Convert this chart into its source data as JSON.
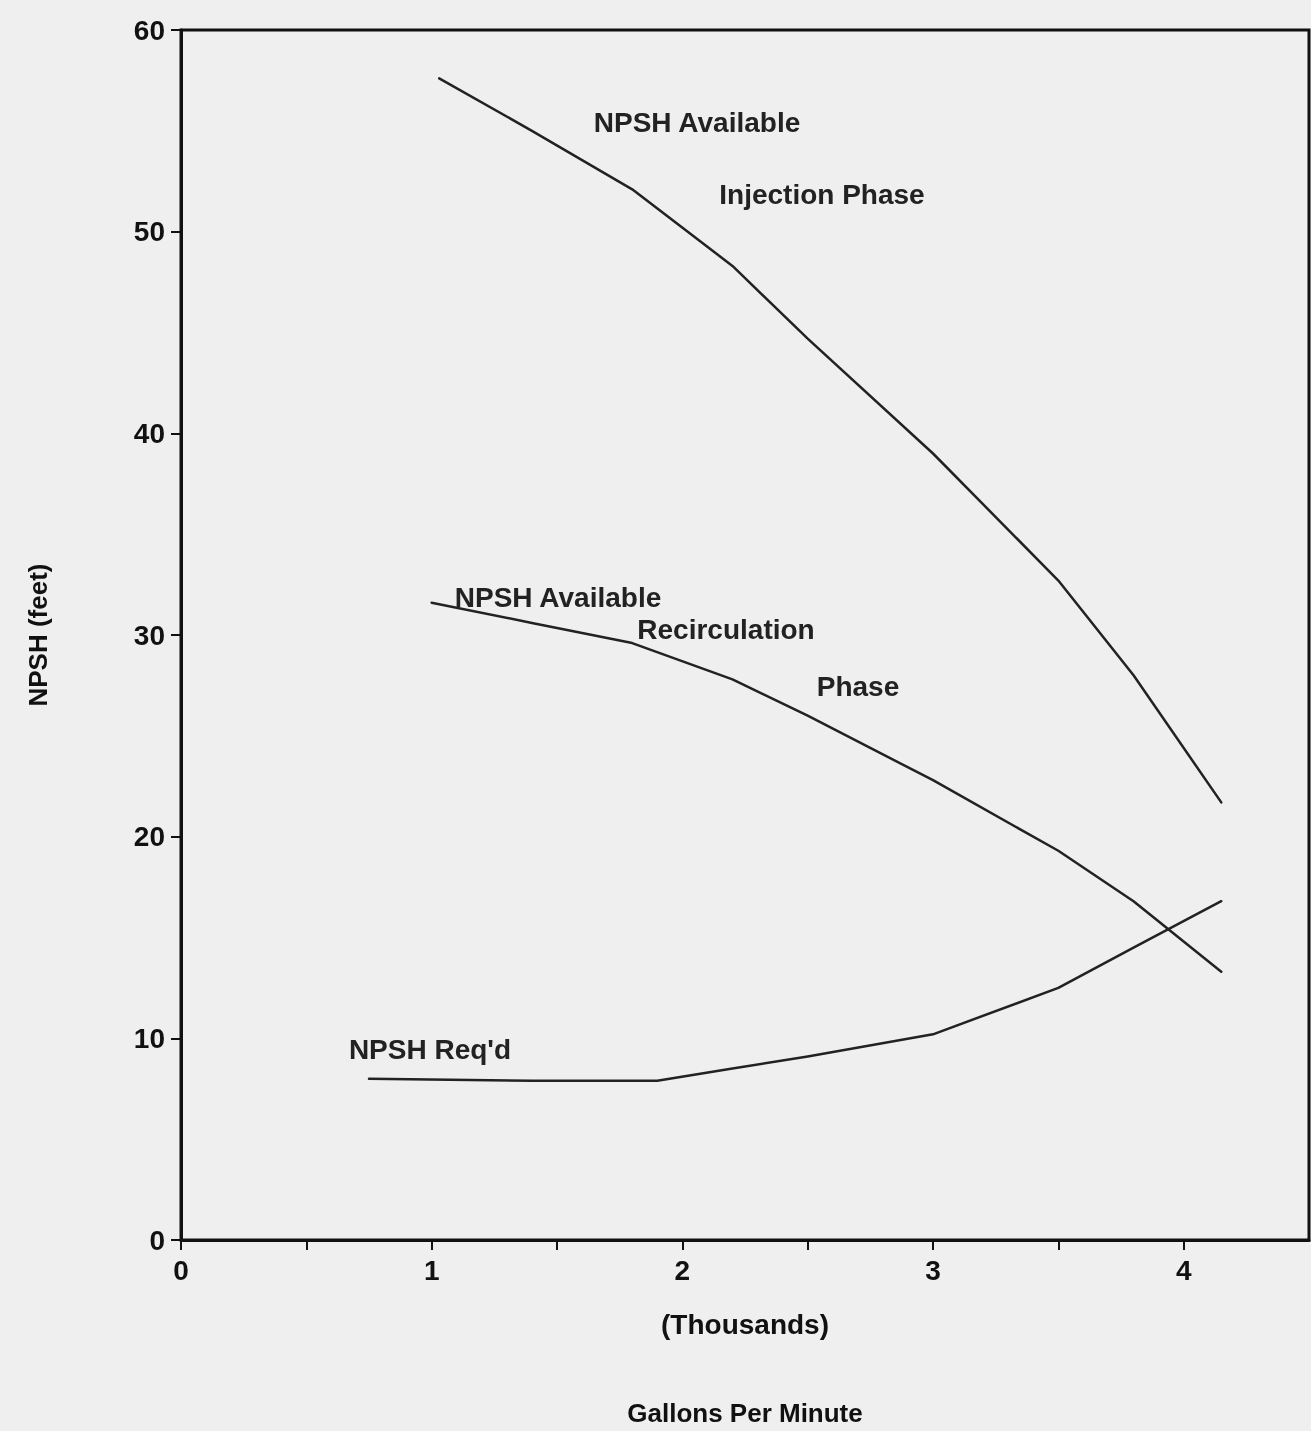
{
  "chart_data": {
    "type": "line",
    "xlabel": "Gallons Per Minute",
    "ylabel": "NPSH (feet)",
    "xlim": [
      0,
      4.5
    ],
    "xticks": [
      0,
      {
        "value": 0.5,
        "label": null
      },
      1,
      {
        "value": 1.5,
        "label": null
      },
      2,
      {
        "value": 2.5,
        "label": null
      },
      3,
      {
        "value": 3.5,
        "label": null
      },
      4
    ],
    "ylim": [
      0,
      60
    ],
    "yticks": [
      0,
      10,
      20,
      30,
      40,
      50,
      60
    ],
    "grid": false,
    "marker": "none",
    "line_style": "solid",
    "series": [
      {
        "name": "NPSH Available\nInjection Phase",
        "color": "#222222",
        "x": [
          1.03,
          1.4,
          1.8,
          2.2,
          2.5,
          3.0,
          3.5,
          3.8,
          4.15
        ],
        "values": [
          57.6,
          55.0,
          52.1,
          48.3,
          44.7,
          39.0,
          32.7,
          28.0,
          21.7
        ]
      },
      {
        "name": "NPSH Available\nRecirculation\nPhase",
        "color": "#222222",
        "x": [
          1.0,
          1.4,
          1.8,
          2.2,
          2.5,
          3.0,
          3.5,
          3.8,
          4.15
        ],
        "values": [
          31.6,
          30.6,
          29.6,
          27.8,
          26.0,
          22.8,
          19.3,
          16.8,
          13.3
        ]
      },
      {
        "name": "NPSH Req'd",
        "color": "#222222",
        "x": [
          0.75,
          1.4,
          1.9,
          2.2,
          2.5,
          3.0,
          3.5,
          3.8,
          4.15
        ],
        "values": [
          8.0,
          7.9,
          7.9,
          8.5,
          9.1,
          10.2,
          12.5,
          14.5,
          16.8
        ]
      }
    ],
    "annotations": [
      "(Thousands)"
    ]
  }
}
